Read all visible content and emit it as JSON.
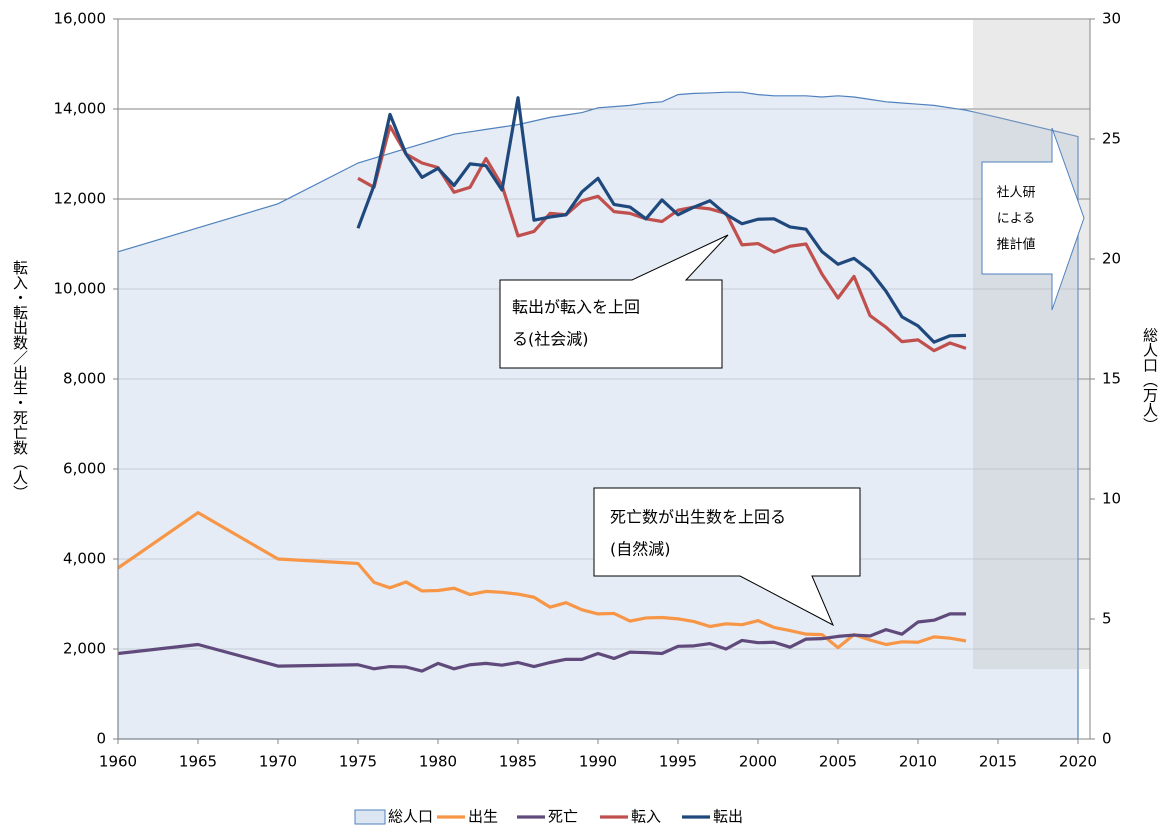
{
  "chart_data": {
    "type": "line",
    "y_label": "転入・転出数／出生・死亡数（人）",
    "y2_label": "総人口（万人）",
    "annotations": [
      "転出が転入を上回",
      "る(社会減)",
      "死亡数が出生数を上回る",
      "(自然減)",
      "社人研",
      "による",
      "推計値"
    ],
    "x": [
      1960,
      1965,
      1970,
      1975,
      1976,
      1977,
      1978,
      1979,
      1980,
      1981,
      1982,
      1983,
      1984,
      1985,
      1986,
      1987,
      1988,
      1989,
      1990,
      1991,
      1992,
      1993,
      1994,
      1995,
      1996,
      1997,
      1998,
      1999,
      2000,
      2001,
      2002,
      2003,
      2004,
      2005,
      2006,
      2007,
      2008,
      2009,
      2010,
      2011,
      2012,
      2013,
      2015,
      2020
    ],
    "xlim": [
      1960,
      2020.75
    ],
    "xticks": [
      1960,
      1965,
      1970,
      1975,
      1980,
      1985,
      1990,
      1995,
      2000,
      2005,
      2010,
      2015,
      2020
    ],
    "ylim": [
      0,
      16000
    ],
    "yticks": [
      0,
      {
        "value": 2000,
        "label": "2,000"
      },
      {
        "value": 4000,
        "label": "4,000"
      },
      {
        "value": 6000,
        "label": "6,000"
      },
      {
        "value": 8000,
        "label": "8,000"
      },
      {
        "value": 10000,
        "label": "10,000"
      },
      {
        "value": 12000,
        "label": "12,000"
      },
      {
        "value": 14000,
        "label": "14,000"
      },
      {
        "value": 16000,
        "label": "16,000"
      }
    ],
    "y2lim": [
      0,
      30
    ],
    "y2ticks": [
      0,
      5,
      10,
      15,
      20,
      25,
      30
    ],
    "grid": true,
    "legend": "bottom",
    "series": [
      {
        "name": "総人口",
        "kind": "area",
        "axis": "y2",
        "color": "#4f81bd",
        "fill": "#dce6f2",
        "values": [
          20.3,
          21.3,
          22.3,
          24.0,
          24.2,
          24.4,
          24.6,
          24.8,
          25.0,
          25.2,
          25.3,
          25.4,
          25.5,
          25.6,
          25.75,
          25.9,
          26.0,
          26.1,
          26.3,
          26.35,
          26.4,
          26.5,
          26.55,
          26.85,
          26.9,
          26.92,
          26.95,
          26.95,
          26.85,
          26.8,
          26.8,
          26.8,
          26.75,
          26.8,
          26.75,
          26.65,
          26.55,
          26.5,
          26.45,
          26.4,
          26.3,
          26.2,
          25.9,
          25.1
        ]
      },
      {
        "name": "出生",
        "color": "#f79646",
        "values": [
          3800,
          5030,
          4000,
          3900,
          3480,
          3360,
          3490,
          3290,
          3300,
          3350,
          3210,
          3280,
          3260,
          3220,
          3150,
          2930,
          3030,
          2870,
          2780,
          2790,
          2620,
          2690,
          2700,
          2670,
          2610,
          2500,
          2560,
          2540,
          2630,
          2480,
          2410,
          2330,
          2320,
          2030,
          2320,
          2200,
          2100,
          2160,
          2150,
          2270,
          2240,
          2180,
          null,
          null
        ]
      },
      {
        "name": "死亡",
        "color": "#604a7b",
        "values": [
          1900,
          2100,
          1620,
          1650,
          1560,
          1610,
          1600,
          1510,
          1680,
          1560,
          1650,
          1680,
          1640,
          1700,
          1610,
          1700,
          1770,
          1770,
          1900,
          1790,
          1930,
          1920,
          1900,
          2060,
          2070,
          2120,
          2000,
          2190,
          2140,
          2150,
          2040,
          2220,
          2230,
          2280,
          2310,
          2290,
          2430,
          2330,
          2600,
          2640,
          2780,
          2780,
          null,
          null
        ]
      },
      {
        "name": "転入",
        "color": "#c0504d",
        "values": [
          null,
          null,
          null,
          12460,
          12260,
          13620,
          13000,
          12800,
          12700,
          12150,
          12260,
          12900,
          12300,
          11180,
          11280,
          11680,
          11650,
          11960,
          12060,
          11720,
          11680,
          11560,
          11500,
          11750,
          11820,
          11780,
          11680,
          10980,
          11010,
          10820,
          10950,
          11000,
          10330,
          9800,
          10280,
          9410,
          9150,
          8830,
          8870,
          8630,
          8800,
          8680,
          null,
          null
        ]
      },
      {
        "name": "転出",
        "color": "#1f497d",
        "values": [
          null,
          null,
          null,
          11350,
          12300,
          13880,
          13000,
          12480,
          12680,
          12300,
          12780,
          12740,
          12200,
          14250,
          11530,
          11600,
          11650,
          12160,
          12460,
          11880,
          11820,
          11560,
          11980,
          11650,
          11820,
          11960,
          11660,
          11450,
          11550,
          11560,
          11380,
          11330,
          10830,
          10550,
          10680,
          10410,
          9950,
          9380,
          9180,
          8820,
          8960,
          8970,
          null,
          null
        ]
      }
    ]
  }
}
